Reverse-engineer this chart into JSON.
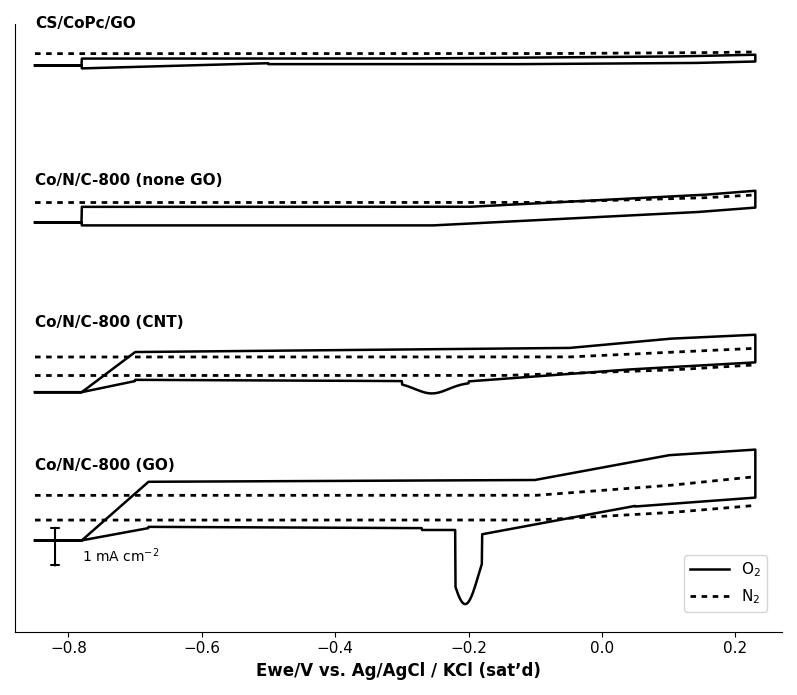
{
  "xlabel": "Ewe/V vs. Ag/AgCl / KCl (sat’d)",
  "xlim": [
    -0.88,
    0.27
  ],
  "xticks": [
    -0.8,
    -0.6,
    -0.4,
    -0.2,
    0.0,
    0.2
  ],
  "background_color": "#ffffff",
  "labels": [
    "CS/CoPc/GO",
    "Co/N/C-800 (none GO)",
    "Co/N/C-800 (CNT)",
    "Co/N/C-800 (GO)"
  ],
  "legend_o2": "O$_2$",
  "legend_n2": "N$_2$",
  "scale_bar_label": "1 mA cm$^{-2}$"
}
